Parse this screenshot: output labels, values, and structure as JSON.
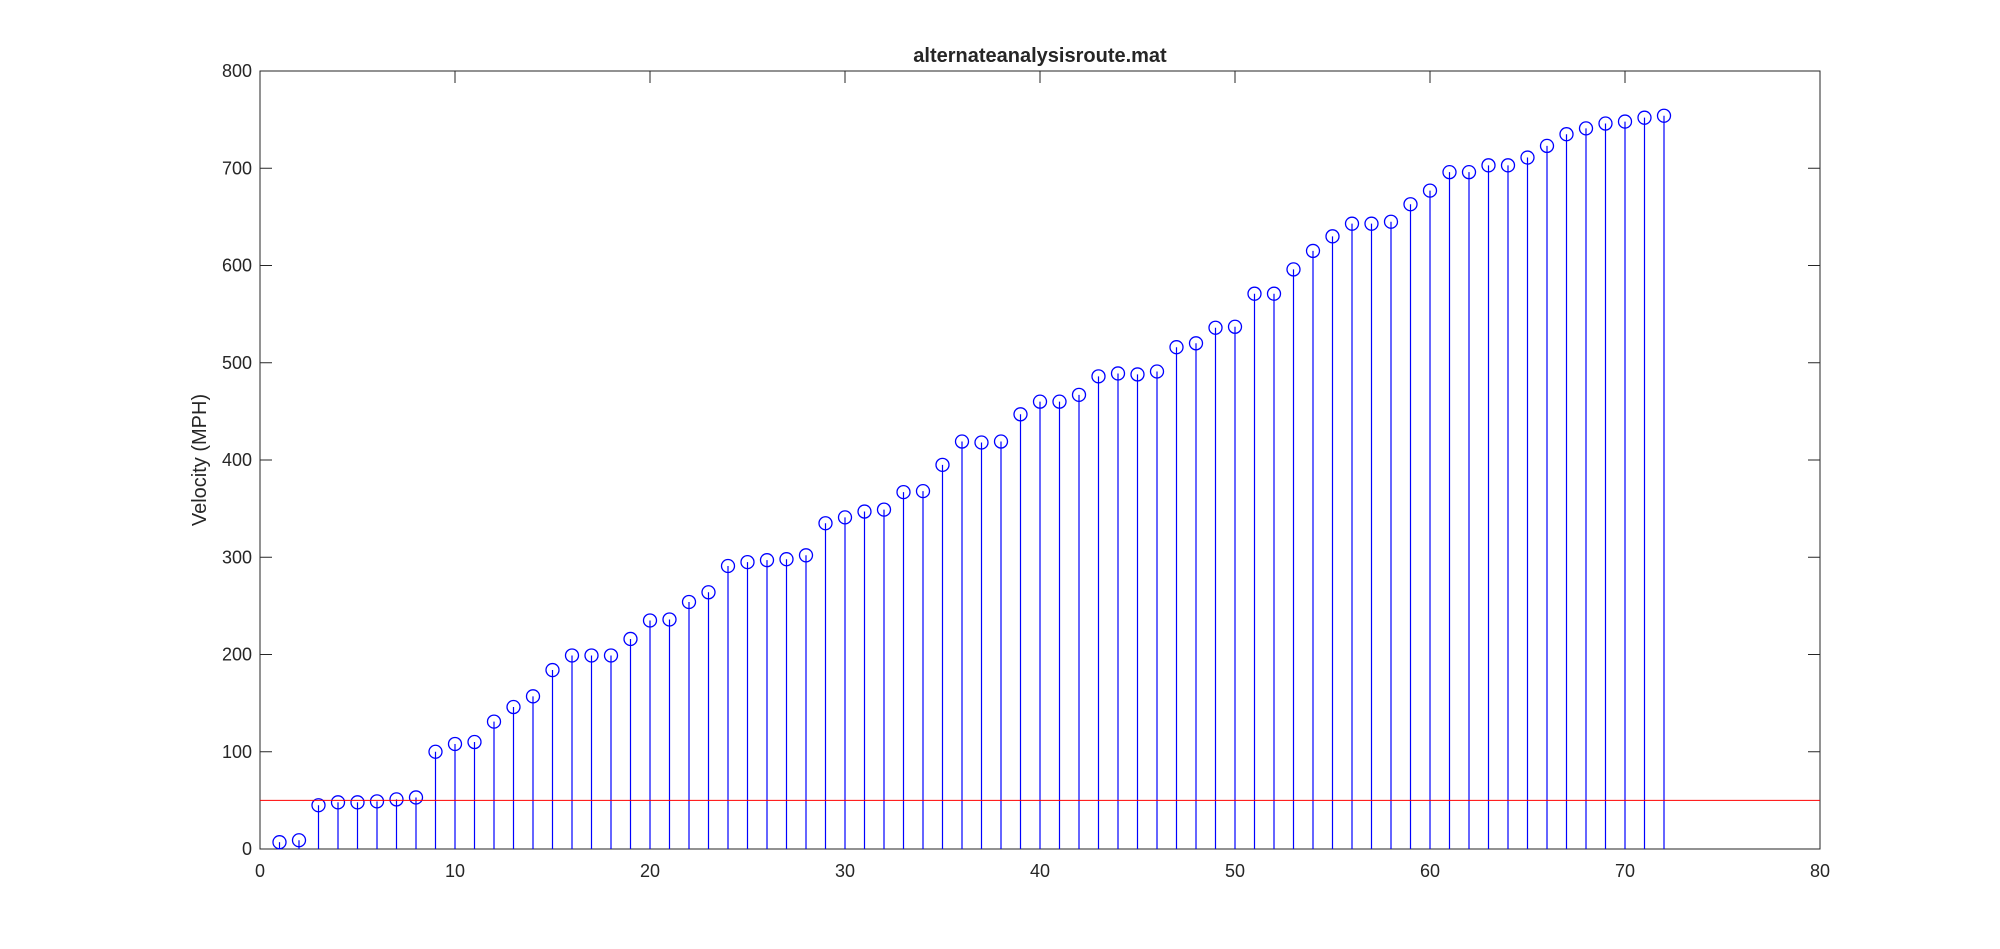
{
  "chart_data": {
    "type": "stem",
    "title": "alternateanalysisroute.mat",
    "xlabel": "",
    "ylabel": "Velocity (MPH)",
    "xlim": [
      0,
      80
    ],
    "ylim": [
      0,
      800
    ],
    "xticks": [
      0,
      10,
      20,
      30,
      40,
      50,
      60,
      70,
      80
    ],
    "yticks": [
      0,
      100,
      200,
      300,
      400,
      500,
      600,
      700,
      800
    ],
    "grid": false,
    "legend": "none",
    "series": [
      {
        "color": "#0000ff",
        "marker": "circle",
        "x": [
          1,
          2,
          3,
          4,
          5,
          6,
          7,
          8,
          9,
          10,
          11,
          12,
          13,
          14,
          15,
          16,
          17,
          18,
          19,
          20,
          21,
          22,
          23,
          24,
          25,
          26,
          27,
          28,
          29,
          30,
          31,
          32,
          33,
          34,
          35,
          36,
          37,
          38,
          39,
          40,
          41,
          42,
          43,
          44,
          45,
          46,
          47,
          48,
          49,
          50,
          51,
          52,
          53,
          54,
          55,
          56,
          57,
          58,
          59,
          60,
          61,
          62,
          63,
          64,
          65,
          66,
          67,
          68,
          69,
          70,
          71,
          72
        ],
        "values": [
          7,
          9,
          45,
          48,
          48,
          49,
          51,
          53,
          100,
          108,
          110,
          131,
          146,
          157,
          184,
          199,
          199,
          199,
          216,
          235,
          236,
          254,
          264,
          291,
          295,
          297,
          298,
          302,
          335,
          341,
          347,
          349,
          367,
          368,
          395,
          419,
          418,
          419,
          447,
          460,
          460,
          467,
          486,
          489,
          488,
          491,
          516,
          520,
          536,
          537,
          571,
          571,
          596,
          615,
          630,
          643,
          643,
          645,
          663,
          677,
          696,
          696,
          703,
          703,
          711,
          723,
          735,
          741,
          746,
          748,
          752,
          754
        ]
      }
    ],
    "reference_line": {
      "y": 50,
      "color": "#ff0000"
    }
  }
}
